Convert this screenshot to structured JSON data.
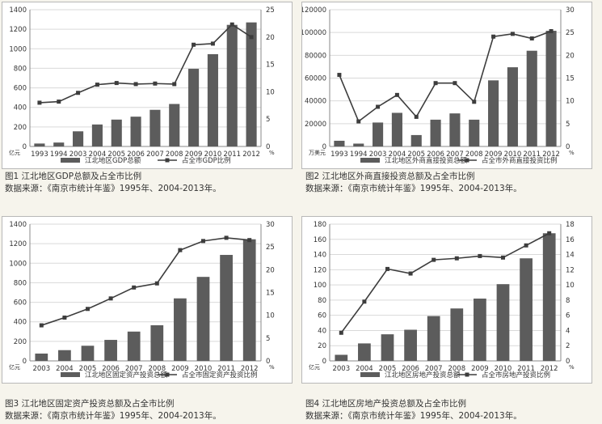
{
  "colors": {
    "bar": "#5c5c5c",
    "line": "#3d3d3d",
    "grid": "#d9d9d9",
    "axis": "#888888",
    "text": "#333333"
  },
  "charts": [
    {
      "caption": "图1 江北地区GDP总额及占全市比例",
      "source": "数据来源：《南京市统计年鉴》1995年、2004-2013年。"
    },
    {
      "caption": "图2 江北地区外商直接投资总额及占全市比例",
      "source": "数据来源：《南京市统计年鉴》1995年、2004-2013年。"
    },
    {
      "caption": "图3 江北地区固定资产投资总额及占全市比例",
      "source": "数据来源：《南京市统计年鉴》1995年、2004-2013年。"
    },
    {
      "caption": "图4 江北地区房地产投资总额及占全市比例",
      "source": "数据来源：《南京市统计年鉴》1995年、2004-2013年。"
    }
  ],
  "chart_data": [
    {
      "type": "bar",
      "categories": [
        "1993",
        "1994",
        "2003",
        "2004",
        "2005",
        "2006",
        "2007",
        "2008",
        "2009",
        "2010",
        "2011",
        "2012"
      ],
      "series": [
        {
          "name": "江北地区GDP总额",
          "type": "bar",
          "axis": "left",
          "values": [
            30,
            40,
            155,
            225,
            275,
            305,
            375,
            435,
            795,
            945,
            1245,
            1270
          ]
        },
        {
          "name": "占全市GDP比例",
          "type": "line",
          "axis": "right",
          "values": [
            8,
            8.2,
            9.8,
            11.3,
            11.6,
            11.4,
            11.5,
            11.4,
            18.6,
            18.8,
            22.3,
            20
          ]
        }
      ],
      "ylim": [
        0,
        1400
      ],
      "yticks": [
        0,
        200,
        400,
        600,
        800,
        1000,
        1200,
        1400
      ],
      "y2lim": [
        0,
        25
      ],
      "y2ticks": [
        0,
        5,
        10,
        15,
        20,
        25
      ],
      "yunit": "亿元",
      "y2unit": "%"
    },
    {
      "type": "bar",
      "categories": [
        "1993",
        "1994",
        "2003",
        "2004",
        "2005",
        "2006",
        "2007",
        "2008",
        "2009",
        "2010",
        "2011",
        "2012"
      ],
      "series": [
        {
          "name": "江北地区外商直接投资总额",
          "type": "bar",
          "axis": "left",
          "values": [
            5000,
            2500,
            21000,
            29500,
            10000,
            23500,
            29000,
            23500,
            58000,
            69500,
            84000,
            101500
          ]
        },
        {
          "name": "占全市外商直接投资比例",
          "type": "line",
          "axis": "right",
          "values": [
            15.7,
            5.5,
            8.7,
            11.3,
            6.5,
            13.9,
            13.9,
            9.8,
            24.1,
            24.7,
            23.7,
            25.3
          ]
        }
      ],
      "ylim": [
        0,
        120000
      ],
      "yticks": [
        0,
        20000,
        40000,
        60000,
        80000,
        100000,
        120000
      ],
      "y2lim": [
        0,
        30
      ],
      "y2ticks": [
        0,
        5,
        10,
        15,
        20,
        25,
        30
      ],
      "yunit": "万美元",
      "y2unit": "%"
    },
    {
      "type": "bar",
      "categories": [
        "2003",
        "2004",
        "2005",
        "2006",
        "2007",
        "2008",
        "2009",
        "2010",
        "2011",
        "2012"
      ],
      "series": [
        {
          "name": "江北地区固定资产投资总额",
          "type": "bar",
          "axis": "left",
          "values": [
            75,
            110,
            155,
            215,
            300,
            365,
            640,
            860,
            1085,
            1245
          ]
        },
        {
          "name": "占全市固定资产投资比例",
          "type": "line",
          "axis": "right",
          "values": [
            7.8,
            9.5,
            11.4,
            13.7,
            16.1,
            17,
            24.3,
            26.3,
            27,
            26.5
          ]
        }
      ],
      "ylim": [
        0,
        1400
      ],
      "yticks": [
        0,
        200,
        400,
        600,
        800,
        1000,
        1200,
        1400
      ],
      "y2lim": [
        0,
        30
      ],
      "y2ticks": [
        0,
        5,
        10,
        15,
        20,
        25,
        30
      ],
      "yunit": "亿元",
      "y2unit": "%"
    },
    {
      "type": "bar",
      "categories": [
        "2003",
        "2004",
        "2005",
        "2006",
        "2007",
        "2008",
        "2009",
        "2010",
        "2011",
        "2012"
      ],
      "series": [
        {
          "name": "江北地区房地产投资总额",
          "type": "bar",
          "axis": "left",
          "values": [
            8,
            23,
            35,
            41,
            59,
            69,
            82,
            101,
            135,
            168
          ]
        },
        {
          "name": "占全市房地产投资比例",
          "type": "line",
          "axis": "right",
          "values": [
            3.7,
            7.8,
            12.1,
            11.5,
            13.3,
            13.5,
            13.8,
            13.6,
            15.2,
            16.8
          ]
        }
      ],
      "ylim": [
        0,
        180
      ],
      "yticks": [
        0,
        20,
        40,
        60,
        80,
        100,
        120,
        140,
        160,
        180
      ],
      "y2lim": [
        0,
        18
      ],
      "y2ticks": [
        0,
        2,
        4,
        6,
        8,
        10,
        12,
        14,
        16,
        18
      ],
      "yunit": "亿元",
      "y2unit": "%"
    }
  ]
}
